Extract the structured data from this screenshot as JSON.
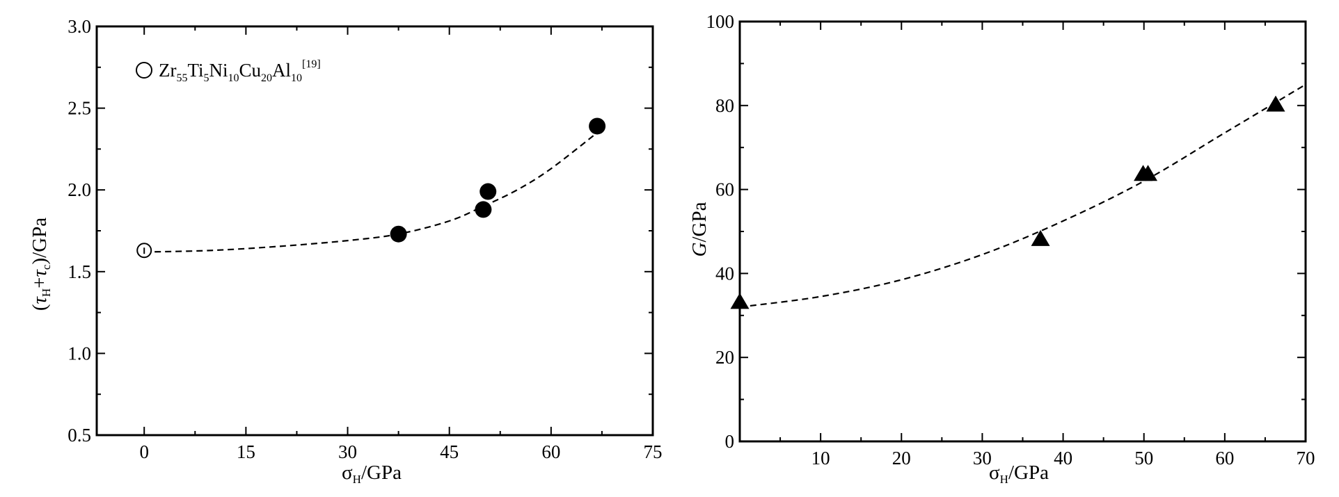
{
  "chart_data": [
    {
      "type": "scatter",
      "xlabel": "σH/GPa",
      "xlabel_main": "σ",
      "xlabel_sub": "H",
      "xlabel_rest": "/GPa",
      "ylabel": "(τH+τc)/GPa",
      "ylabel_parts": {
        "open": "(",
        "tau1": "τ",
        "sub1": "H",
        "plus": "+",
        "tau2": "τ",
        "sub2": "c",
        "close": ")/GPa"
      },
      "xlim": [
        -7,
        75
      ],
      "ylim": [
        0.5,
        3.0
      ],
      "x_ticks": [
        0,
        15,
        30,
        45,
        60,
        75
      ],
      "x_tick_labels": [
        "0",
        "15",
        "30",
        "45",
        "60",
        "75"
      ],
      "y_ticks": [
        0.5,
        1.0,
        1.5,
        2.0,
        2.5,
        3.0
      ],
      "y_tick_labels": [
        "0.5",
        "1.0",
        "1.5",
        "2.0",
        "2.5",
        "3.0"
      ],
      "grid": false,
      "legend_position": "top-left",
      "legend": {
        "marker": "open-circle",
        "parts": [
          {
            "t": "Zr",
            "k": "n"
          },
          {
            "t": "55",
            "k": "sub"
          },
          {
            "t": "Ti",
            "k": "n"
          },
          {
            "t": "5",
            "k": "sub"
          },
          {
            "t": "Ni",
            "k": "n"
          },
          {
            "t": "10",
            "k": "sub"
          },
          {
            "t": "Cu",
            "k": "n"
          },
          {
            "t": "20",
            "k": "sub"
          },
          {
            "t": "Al",
            "k": "n"
          },
          {
            "t": "10",
            "k": "sub"
          },
          {
            "t": "[19]",
            "k": "sup"
          }
        ]
      },
      "series": [
        {
          "name": "Zr55Ti5Ni10Cu20Al10 [19]",
          "marker": "open-circle",
          "points": [
            {
              "x": 0,
              "y": 1.63
            }
          ]
        },
        {
          "marker": "filled-circle",
          "points": [
            {
              "x": 37.5,
              "y": 1.73
            },
            {
              "x": 50.0,
              "y": 1.88
            },
            {
              "x": 50.7,
              "y": 1.99
            },
            {
              "x": 66.8,
              "y": 2.39
            }
          ]
        }
      ],
      "fit_line": {
        "style": "dashed",
        "points": [
          {
            "x": 0,
            "y": 1.62
          },
          {
            "x": 10,
            "y": 1.63
          },
          {
            "x": 20,
            "y": 1.655
          },
          {
            "x": 30,
            "y": 1.69
          },
          {
            "x": 37.5,
            "y": 1.73
          },
          {
            "x": 45,
            "y": 1.81
          },
          {
            "x": 50,
            "y": 1.9
          },
          {
            "x": 55,
            "y": 2.0
          },
          {
            "x": 60,
            "y": 2.13
          },
          {
            "x": 66.8,
            "y": 2.35
          }
        ]
      }
    },
    {
      "type": "scatter",
      "xlabel": "σH/GPa",
      "xlabel_main": "σ",
      "xlabel_sub": "H",
      "xlabel_rest": "/GPa",
      "ylabel": "G/GPa",
      "ylabel_italic": "G",
      "ylabel_rest": "/GPa",
      "xlim": [
        0,
        70
      ],
      "ylim": [
        0,
        100
      ],
      "x_ticks": [
        10,
        20,
        30,
        40,
        50,
        60,
        70
      ],
      "x_tick_labels": [
        "10",
        "20",
        "30",
        "40",
        "50",
        "60",
        "70"
      ],
      "y_ticks": [
        0,
        20,
        40,
        60,
        80,
        100
      ],
      "y_tick_labels": [
        "0",
        "20",
        "40",
        "60",
        "80",
        "100"
      ],
      "grid": false,
      "series": [
        {
          "marker": "filled-triangle",
          "points": [
            {
              "x": 0,
              "y": 33
            },
            {
              "x": 37.2,
              "y": 48
            },
            {
              "x": 49.9,
              "y": 63.5
            },
            {
              "x": 50.5,
              "y": 63.5
            },
            {
              "x": 66.3,
              "y": 80
            }
          ]
        }
      ],
      "fit_line": {
        "style": "dashed",
        "points": [
          {
            "x": 0,
            "y": 32
          },
          {
            "x": 10,
            "y": 34.5
          },
          {
            "x": 20,
            "y": 38.5
          },
          {
            "x": 30,
            "y": 44.5
          },
          {
            "x": 40,
            "y": 52.5
          },
          {
            "x": 50,
            "y": 62
          },
          {
            "x": 60,
            "y": 73.5
          },
          {
            "x": 70,
            "y": 85
          }
        ]
      }
    }
  ]
}
